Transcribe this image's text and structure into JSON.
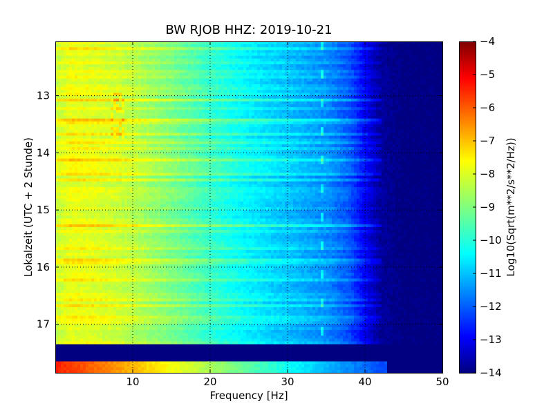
{
  "chart_data": {
    "type": "heatmap",
    "title": "BW RJOB HHZ: 2019-10-21",
    "xlabel": "Frequency [Hz]",
    "ylabel": "Lokalzeit (UTC + 2 Stunde)",
    "xlim": [
      0,
      50
    ],
    "ylim": [
      17.85,
      12.05
    ],
    "x_ticks": [
      10,
      20,
      30,
      40,
      50
    ],
    "y_ticks": [
      13,
      14,
      15,
      16,
      17
    ],
    "grid": true,
    "colormap": "jet",
    "colorbar": {
      "label": "Log10(Sqrt(m**2/s**2/Hz))",
      "range": [
        -14,
        -4
      ],
      "ticks": [
        -4,
        -5,
        -6,
        -7,
        -8,
        -9,
        -10,
        -11,
        -12,
        -13,
        -14
      ]
    },
    "spectral_profile": {
      "frequency_hz": [
        0,
        2,
        5,
        8,
        10,
        15,
        20,
        25,
        30,
        35,
        38,
        40,
        42,
        45,
        50
      ],
      "log10_amplitude": [
        -8.3,
        -7.9,
        -8.0,
        -8.2,
        -8.4,
        -9.0,
        -9.7,
        -10.3,
        -10.8,
        -11.3,
        -11.9,
        -12.8,
        -13.7,
        -14.0,
        -14.0
      ]
    },
    "features": [
      {
        "type": "no_data_band",
        "time_start": 17.35,
        "time_end": 17.65,
        "value": -14
      },
      {
        "type": "high_amplitude_row",
        "time_start": 17.65,
        "time_end": 17.85,
        "value_range": [
          -5.5,
          -12
        ]
      },
      {
        "type": "line_feature",
        "frequency_hz": 34.5,
        "repeating_every_h": 0.5
      },
      {
        "type": "bright_patch",
        "frequency_hz": [
          7,
          9
        ],
        "time_start": 12.95,
        "time_end": 13.75
      }
    ]
  }
}
